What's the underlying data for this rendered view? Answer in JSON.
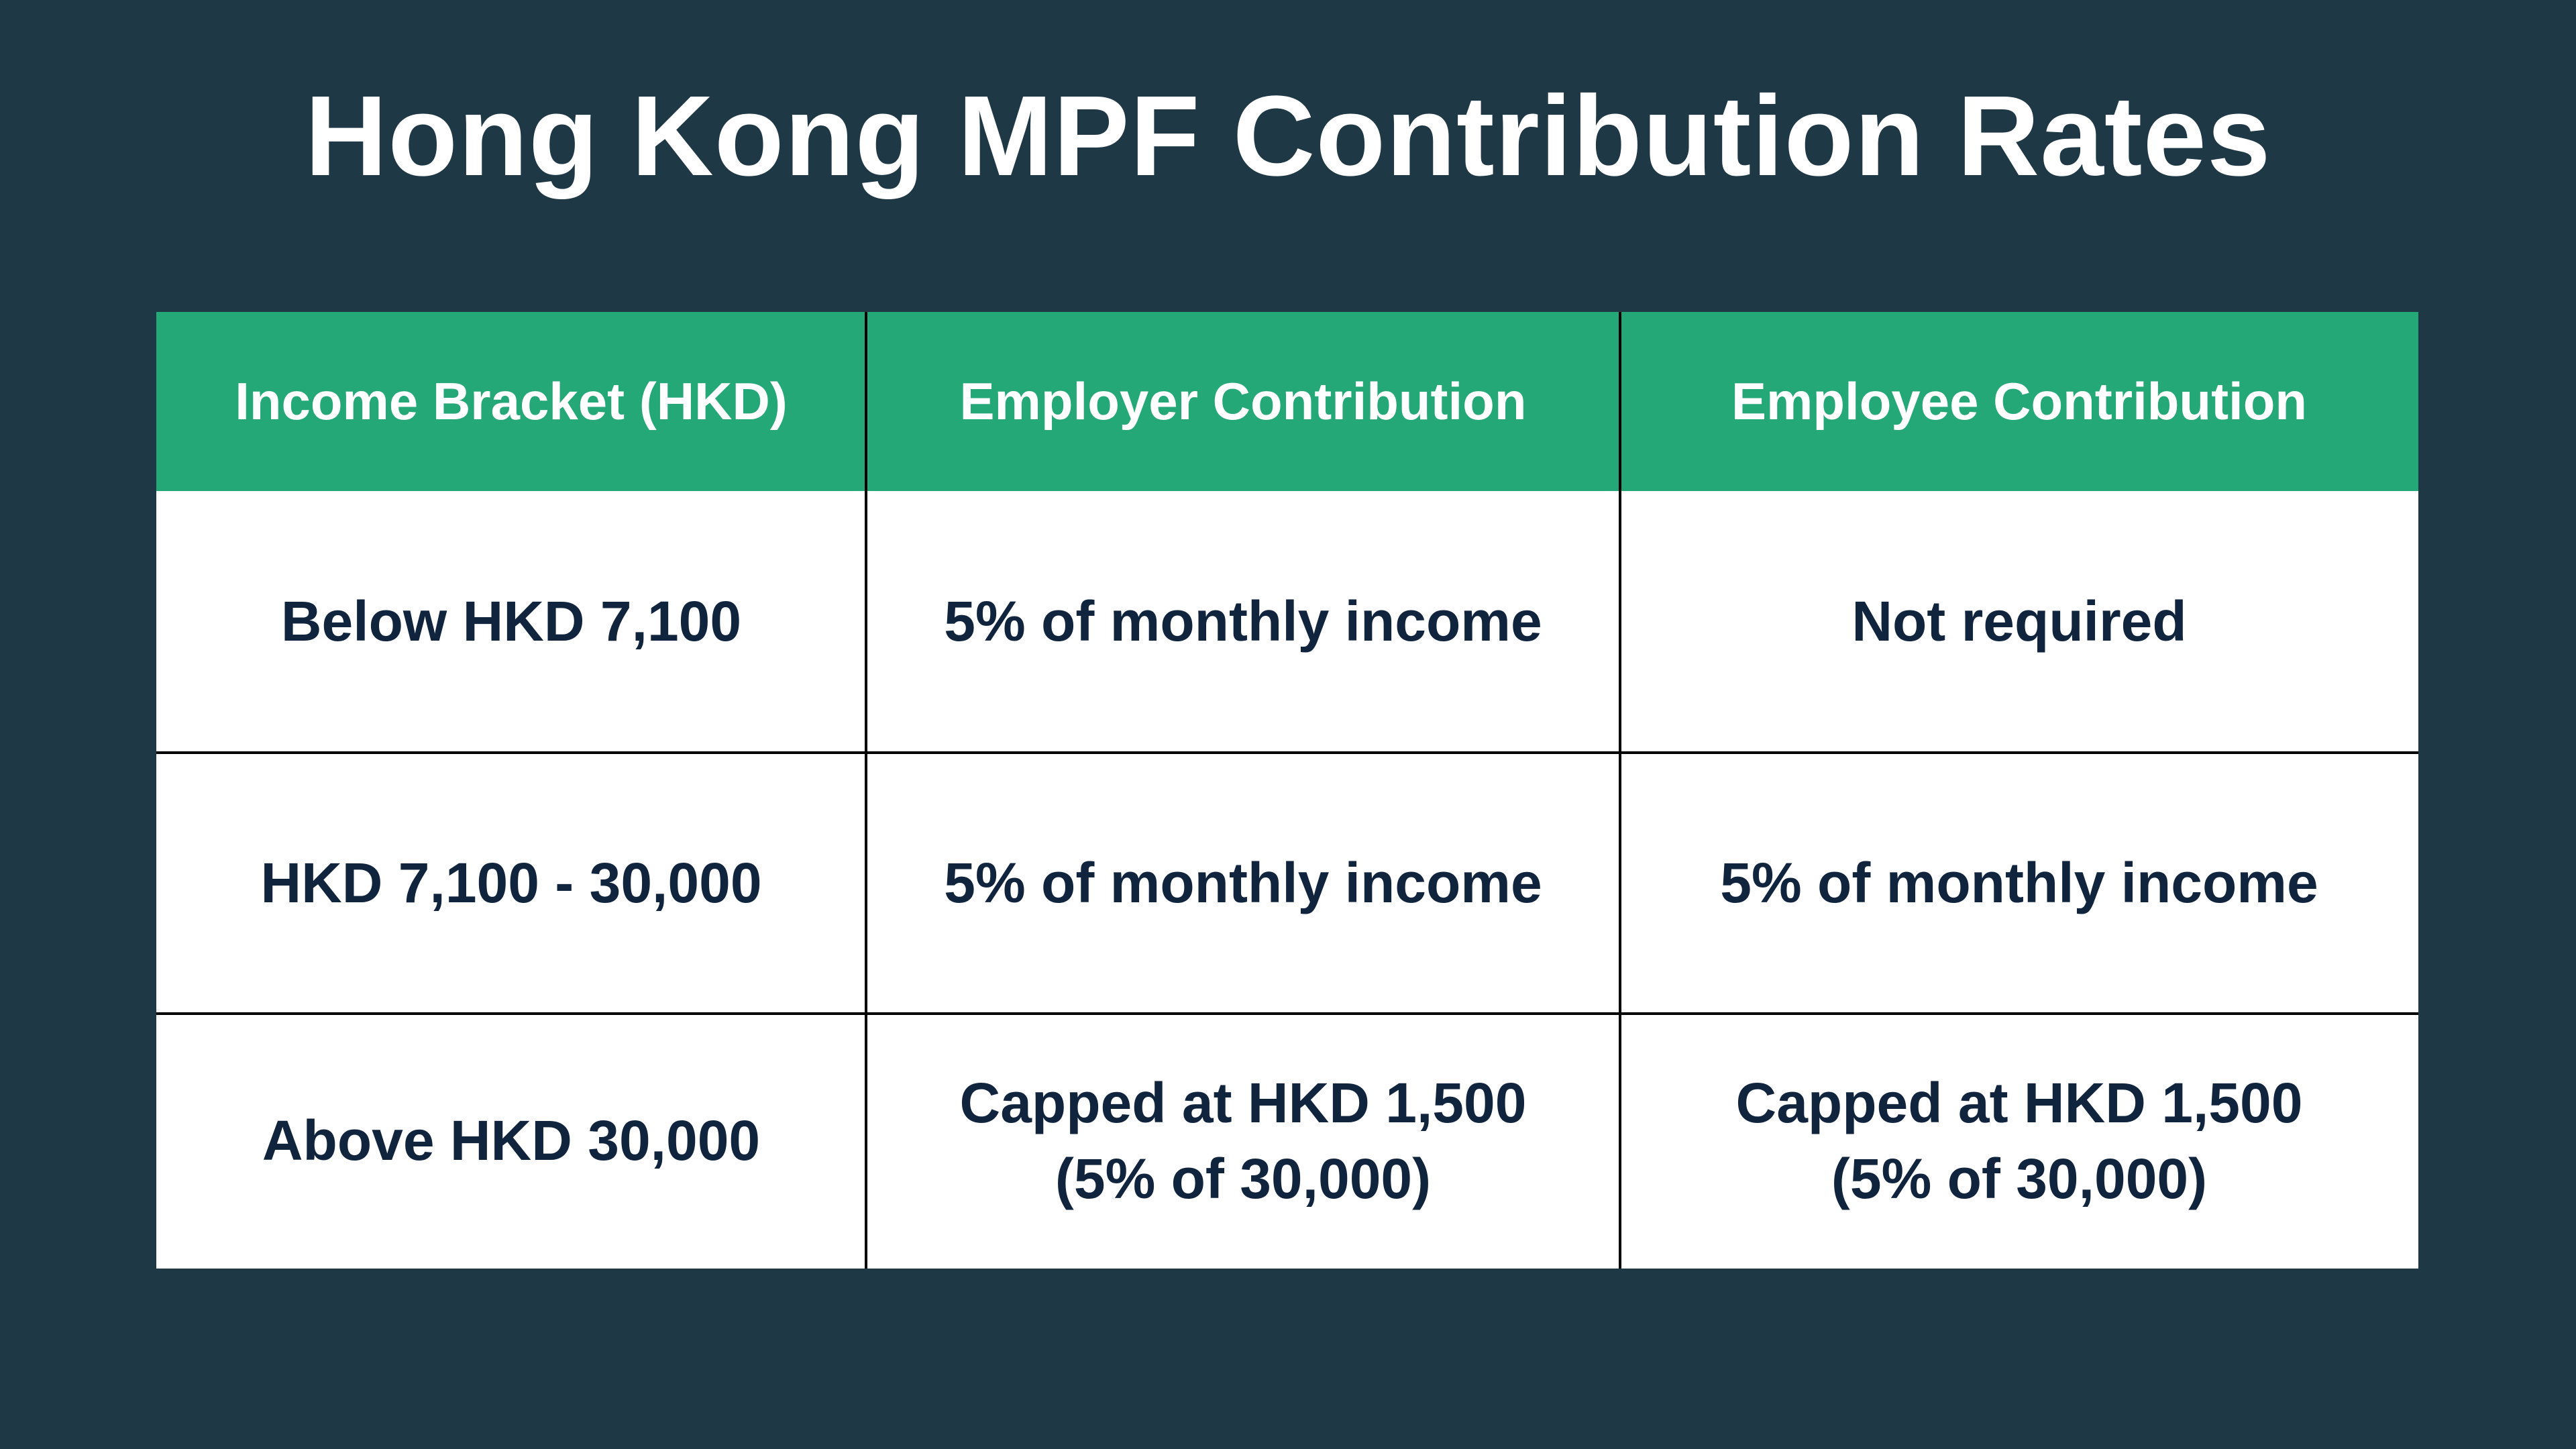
{
  "title": "Hong Kong MPF Contribution Rates",
  "colors": {
    "background": "#1f3845",
    "header": "#25a878",
    "text": "#10243e"
  },
  "table": {
    "headers": [
      "Income Bracket (HKD)",
      "Employer Contribution",
      "Employee Contribution"
    ],
    "rows": [
      [
        "Below HKD 7,100",
        "5% of monthly income",
        "Not required"
      ],
      [
        "HKD 7,100 - 30,000",
        "5% of monthly income",
        "5% of monthly income"
      ],
      [
        "Above HKD 30,000",
        "Capped at HKD 1,500\n(5% of 30,000)",
        "Capped at HKD 1,500\n(5% of 30,000)"
      ]
    ]
  }
}
